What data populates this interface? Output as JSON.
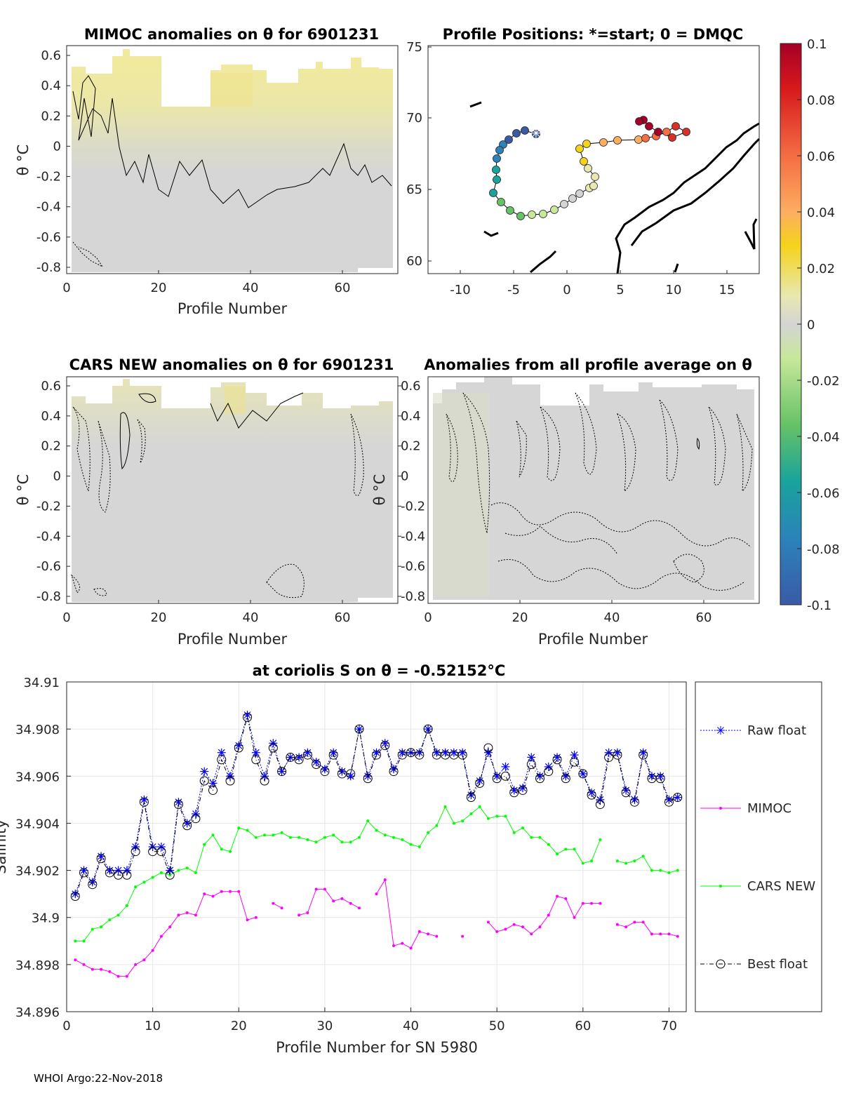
{
  "panels": {
    "mimoc": {
      "title": "MIMOC anomalies on θ  for 6901231",
      "xlabel": "Profile Number",
      "ylabel": "θ °C",
      "xticks": [
        "0",
        "20",
        "40",
        "60"
      ],
      "yticks": [
        "0.6",
        "0.4",
        "0.2",
        "0",
        "-0.2",
        "-0.4",
        "-0.6",
        "-0.8"
      ]
    },
    "positions": {
      "title": "Profile Positions: *=start; 0 = DMQC",
      "xticks": [
        "-10",
        "-5",
        "0",
        "5",
        "10",
        "15"
      ],
      "yticks": [
        "75",
        "70",
        "65",
        "60"
      ]
    },
    "cars": {
      "title": "CARS NEW anomalies on θ for 6901231",
      "xlabel": "Profile Number",
      "ylabel": "θ °C",
      "xticks": [
        "0",
        "20",
        "40",
        "60"
      ],
      "yticks": [
        "0.6",
        "0.4",
        "0.2",
        "0",
        "-0.2",
        "-0.4",
        "-0.6",
        "-0.8"
      ]
    },
    "average": {
      "title": "Anomalies from all profile average on θ",
      "xlabel": "Profile Number",
      "ylabel": "θ °C",
      "xticks": [
        "0",
        "20",
        "40",
        "60"
      ],
      "yticks": [
        "0.6",
        "0.4",
        "0.2",
        "0",
        "-0.2",
        "-0.4",
        "-0.6",
        "-0.8"
      ]
    }
  },
  "colorbar": {
    "ticks": [
      "0.1",
      "0.08",
      "0.06",
      "0.04",
      "0.02",
      "0",
      "-0.02",
      "-0.04",
      "-0.06",
      "-0.08",
      "-0.1"
    ],
    "colors": [
      "#a50026",
      "#d73027",
      "#f46d43",
      "#fdae61",
      "#f5d31a",
      "#e8e8b0",
      "#d4d4d4",
      "#c8e89a",
      "#66c266",
      "#1aa39c",
      "#2b83ba",
      "#3a5aa8"
    ]
  },
  "chart_data": {
    "type": "line",
    "title": "at coriolis S on θ = -0.52152°C",
    "xlabel": "Profile Number for SN 5980",
    "ylabel": "Salinity",
    "xlim": [
      0,
      72
    ],
    "ylim": [
      34.896,
      34.91
    ],
    "xticks": [
      "0",
      "10",
      "20",
      "30",
      "40",
      "50",
      "60",
      "70"
    ],
    "yticks": [
      "34.91",
      "34.908",
      "34.906",
      "34.904",
      "34.902",
      "34.9",
      "34.898",
      "34.896"
    ],
    "x": [
      1,
      2,
      3,
      4,
      5,
      6,
      7,
      8,
      9,
      10,
      11,
      12,
      13,
      14,
      15,
      16,
      17,
      18,
      19,
      20,
      21,
      22,
      23,
      24,
      25,
      26,
      27,
      28,
      29,
      30,
      31,
      32,
      33,
      34,
      35,
      36,
      37,
      38,
      39,
      40,
      41,
      42,
      43,
      44,
      45,
      46,
      47,
      48,
      49,
      50,
      51,
      52,
      53,
      54,
      55,
      56,
      57,
      58,
      59,
      60,
      61,
      62,
      63,
      64,
      65,
      66,
      67,
      68,
      69,
      70,
      71
    ],
    "series": [
      {
        "name": "Raw float",
        "color": "#0000ff",
        "values": [
          34.901,
          34.902,
          34.9015,
          34.9026,
          34.902,
          34.902,
          34.902,
          34.903,
          34.905,
          34.903,
          34.903,
          34.902,
          34.9049,
          34.904,
          34.9044,
          34.9062,
          34.9057,
          34.907,
          34.906,
          34.9073,
          34.9086,
          34.907,
          34.906,
          34.9074,
          34.9062,
          34.9068,
          34.9068,
          34.907,
          34.9066,
          34.9063,
          34.907,
          34.9062,
          34.906,
          34.908,
          34.906,
          34.907,
          34.9074,
          34.9063,
          34.907,
          34.907,
          34.907,
          34.908,
          34.907,
          34.907,
          34.907,
          34.907,
          34.9052,
          34.9058,
          34.907,
          34.906,
          34.9064,
          34.9054,
          34.9055,
          34.9068,
          34.906,
          34.9064,
          34.9068,
          34.906,
          34.9069,
          34.9061,
          34.9053,
          34.905,
          34.907,
          34.907,
          34.9054,
          34.905,
          34.907,
          34.906,
          34.906,
          34.905,
          34.9051
        ]
      },
      {
        "name": "MIMOC",
        "color": "#ff00ff",
        "values": [
          34.8982,
          34.898,
          34.8978,
          34.8978,
          34.8977,
          34.8975,
          34.8975,
          34.898,
          34.8982,
          34.8986,
          34.8992,
          34.8996,
          34.9001,
          34.9002,
          34.9001,
          34.901,
          34.9009,
          34.9011,
          34.9011,
          34.9011,
          34.8999,
          34.9,
          null,
          34.9006,
          34.9004,
          null,
          34.9001,
          34.9002,
          34.9012,
          34.9012,
          34.9007,
          34.9008,
          34.9006,
          34.9004,
          null,
          34.901,
          34.9016,
          34.8988,
          34.8989,
          34.8987,
          34.8994,
          34.8993,
          34.8992,
          null,
          null,
          34.8992,
          null,
          null,
          34.8998,
          34.8994,
          34.8995,
          34.8997,
          34.8996,
          34.8993,
          34.8996,
          34.9001,
          34.9009,
          34.9008,
          34.9,
          34.9006,
          34.9006,
          34.9006,
          null,
          34.8997,
          34.8996,
          34.8998,
          34.8998,
          34.8993,
          34.8993,
          34.8993,
          34.8992
        ]
      },
      {
        "name": "CARS NEW",
        "color": "#00ff00",
        "values": [
          34.899,
          34.899,
          34.8995,
          34.8996,
          34.8999,
          34.9001,
          34.9005,
          34.9013,
          34.9015,
          34.9017,
          34.9019,
          34.9018,
          34.902,
          34.9021,
          34.9019,
          34.9031,
          34.9035,
          34.9029,
          34.9028,
          34.9038,
          34.9037,
          34.9034,
          34.9035,
          34.9035,
          34.9036,
          34.9034,
          34.9034,
          34.9033,
          34.9032,
          34.9034,
          34.9035,
          34.9032,
          34.9032,
          34.9034,
          34.9041,
          34.9037,
          34.9035,
          34.9034,
          34.9033,
          34.9031,
          34.903,
          34.9036,
          34.9039,
          34.9047,
          34.904,
          34.9041,
          34.9044,
          34.9047,
          34.9042,
          34.9043,
          34.9043,
          34.9036,
          34.9038,
          34.9034,
          34.9034,
          34.9031,
          34.9027,
          34.9029,
          34.9029,
          34.9023,
          34.9024,
          34.9033,
          null,
          34.9024,
          34.9023,
          34.9024,
          34.9026,
          34.902,
          34.902,
          34.9019,
          34.902
        ]
      },
      {
        "name": "Best float",
        "color": "#000000",
        "values": [
          34.9009,
          34.9019,
          34.9014,
          34.9025,
          34.9019,
          34.9018,
          34.9018,
          34.9028,
          34.9049,
          34.9028,
          34.9028,
          34.9018,
          34.9048,
          34.9039,
          34.9042,
          34.9058,
          34.9054,
          34.9067,
          34.9058,
          34.9072,
          34.9085,
          34.9067,
          34.9058,
          34.9072,
          34.9062,
          34.9068,
          34.9067,
          34.9069,
          34.9065,
          34.9062,
          34.9069,
          34.9061,
          34.9061,
          34.908,
          34.9059,
          34.9069,
          34.9073,
          34.9062,
          34.9069,
          34.907,
          34.9069,
          34.908,
          34.9069,
          34.9069,
          34.9069,
          34.9069,
          34.9051,
          34.9057,
          34.9072,
          34.9059,
          34.906,
          34.9053,
          34.9054,
          34.9065,
          34.9059,
          34.9062,
          34.9067,
          34.9059,
          34.9066,
          34.9061,
          34.9052,
          34.9048,
          34.9068,
          34.9069,
          34.9053,
          34.9049,
          34.9069,
          34.9059,
          34.9059,
          34.9049,
          34.9051
        ]
      }
    ],
    "legend": [
      "Raw float",
      "MIMOC",
      "CARS NEW",
      "Best float"
    ],
    "legend_position": "right"
  },
  "footer": "WHOI Argo:22-Nov-2018"
}
